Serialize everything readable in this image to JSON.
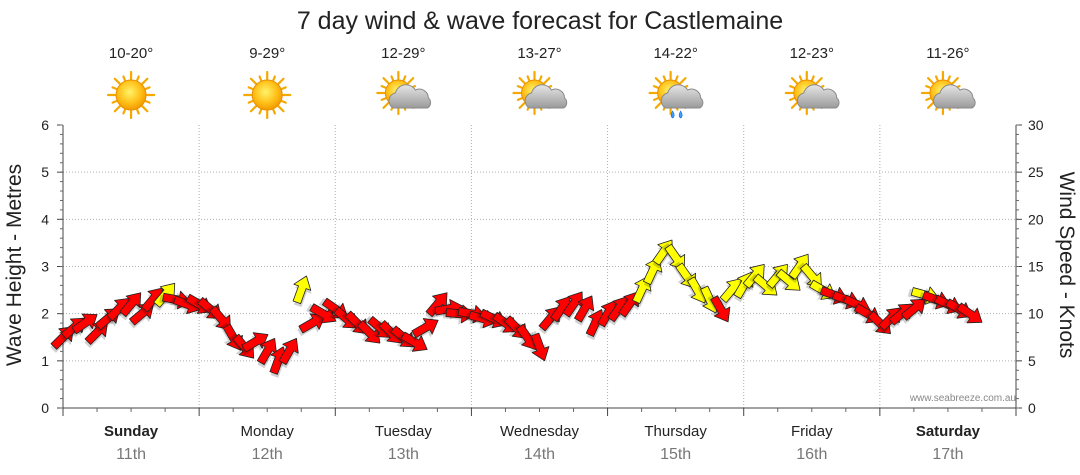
{
  "chart_data": {
    "type": "line",
    "title": "7 day wind & wave forecast for Castlemaine",
    "ylabel": "Wave Height - Metres",
    "y2label": "Wind Speed - Knots",
    "ylim": [
      0,
      6
    ],
    "y2lim": [
      0,
      30
    ],
    "yticks": [
      "0",
      "1",
      "2",
      "3",
      "4",
      "5",
      "6"
    ],
    "y2ticks": [
      "0",
      "5",
      "10",
      "15",
      "20",
      "25",
      "30"
    ],
    "credit": "www.seabreeze.com.au",
    "days": [
      {
        "name": "Sunday",
        "date": "11th",
        "bold": true,
        "temp": "10-20°",
        "icon": "sun-icon"
      },
      {
        "name": "Monday",
        "date": "12th",
        "bold": false,
        "temp": "9-29°",
        "icon": "sun-icon"
      },
      {
        "name": "Tuesday",
        "date": "13th",
        "bold": false,
        "temp": "12-29°",
        "icon": "sun-cloud-icon"
      },
      {
        "name": "Wednesday",
        "date": "14th",
        "bold": false,
        "temp": "13-27°",
        "icon": "sun-cloud-icon"
      },
      {
        "name": "Thursday",
        "date": "15th",
        "bold": false,
        "temp": "14-22°",
        "icon": "sun-cloud-rain-icon"
      },
      {
        "name": "Friday",
        "date": "16th",
        "bold": false,
        "temp": "12-23°",
        "icon": "sun-cloud-icon"
      },
      {
        "name": "Saturday",
        "date": "17th",
        "bold": true,
        "temp": "11-26°",
        "icon": "sun-cloud-icon"
      }
    ],
    "series": [
      {
        "name": "Wind Speed (knots) with direction",
        "colors": {
          "strong": "#ff0000",
          "moderate": "#ffff00",
          "outline": "#222222"
        },
        "points": [
          {
            "x": 0.0,
            "knots": 7.5,
            "dir": 45,
            "color": "strong"
          },
          {
            "x": 0.08,
            "knots": 8.5,
            "dir": 50,
            "color": "strong"
          },
          {
            "x": 0.16,
            "knots": 9.0,
            "dir": 55,
            "color": "strong"
          },
          {
            "x": 0.25,
            "knots": 8.0,
            "dir": 45,
            "color": "strong"
          },
          {
            "x": 0.33,
            "knots": 9.5,
            "dir": 50,
            "color": "strong"
          },
          {
            "x": 0.41,
            "knots": 10.5,
            "dir": 45,
            "color": "strong"
          },
          {
            "x": 0.5,
            "knots": 11.0,
            "dir": 40,
            "color": "strong"
          },
          {
            "x": 0.58,
            "knots": 10.0,
            "dir": 50,
            "color": "strong"
          },
          {
            "x": 0.66,
            "knots": 11.5,
            "dir": 40,
            "color": "strong"
          },
          {
            "x": 0.75,
            "knots": 12.0,
            "dir": 40,
            "color": "moderate"
          },
          {
            "x": 0.83,
            "knots": 11.5,
            "dir": 100,
            "color": "strong"
          },
          {
            "x": 0.91,
            "knots": 11.0,
            "dir": 110,
            "color": "strong"
          },
          {
            "x": 1.0,
            "knots": 11.0,
            "dir": 120,
            "color": "strong"
          },
          {
            "x": 1.08,
            "knots": 10.5,
            "dir": 130,
            "color": "strong"
          },
          {
            "x": 1.16,
            "knots": 9.5,
            "dir": 140,
            "color": "strong"
          },
          {
            "x": 1.25,
            "knots": 7.5,
            "dir": 150,
            "color": "strong"
          },
          {
            "x": 1.33,
            "knots": 6.5,
            "dir": 140,
            "color": "strong"
          },
          {
            "x": 1.41,
            "knots": 7.0,
            "dir": 60,
            "color": "strong"
          },
          {
            "x": 1.5,
            "knots": 6.0,
            "dir": 30,
            "color": "strong"
          },
          {
            "x": 1.58,
            "knots": 5.0,
            "dir": 20,
            "color": "strong"
          },
          {
            "x": 1.66,
            "knots": 6.0,
            "dir": 30,
            "color": "strong"
          },
          {
            "x": 1.75,
            "knots": 12.5,
            "dir": 20,
            "color": "moderate"
          },
          {
            "x": 1.83,
            "knots": 9.0,
            "dir": 60,
            "color": "strong"
          },
          {
            "x": 1.91,
            "knots": 10.0,
            "dir": 120,
            "color": "strong"
          },
          {
            "x": 2.0,
            "knots": 10.5,
            "dir": 125,
            "color": "strong"
          },
          {
            "x": 2.08,
            "knots": 9.5,
            "dir": 130,
            "color": "strong"
          },
          {
            "x": 2.16,
            "knots": 9.0,
            "dir": 135,
            "color": "strong"
          },
          {
            "x": 2.25,
            "knots": 8.0,
            "dir": 135,
            "color": "strong"
          },
          {
            "x": 2.33,
            "knots": 8.5,
            "dir": 130,
            "color": "strong"
          },
          {
            "x": 2.41,
            "knots": 8.0,
            "dir": 135,
            "color": "strong"
          },
          {
            "x": 2.5,
            "knots": 7.5,
            "dir": 130,
            "color": "strong"
          },
          {
            "x": 2.58,
            "knots": 7.0,
            "dir": 120,
            "color": "strong"
          },
          {
            "x": 2.66,
            "knots": 8.5,
            "dir": 60,
            "color": "strong"
          },
          {
            "x": 2.75,
            "knots": 11.0,
            "dir": 40,
            "color": "strong"
          },
          {
            "x": 2.83,
            "knots": 10.5,
            "dir": 80,
            "color": "strong"
          },
          {
            "x": 2.91,
            "knots": 10.0,
            "dir": 95,
            "color": "strong"
          },
          {
            "x": 3.0,
            "knots": 10.0,
            "dir": 100,
            "color": "strong"
          },
          {
            "x": 3.08,
            "knots": 9.5,
            "dir": 105,
            "color": "strong"
          },
          {
            "x": 3.16,
            "knots": 9.5,
            "dir": 115,
            "color": "strong"
          },
          {
            "x": 3.25,
            "knots": 9.0,
            "dir": 125,
            "color": "strong"
          },
          {
            "x": 3.33,
            "knots": 8.5,
            "dir": 135,
            "color": "strong"
          },
          {
            "x": 3.41,
            "knots": 7.5,
            "dir": 145,
            "color": "strong"
          },
          {
            "x": 3.5,
            "knots": 6.5,
            "dir": 160,
            "color": "strong"
          },
          {
            "x": 3.58,
            "knots": 9.5,
            "dir": 40,
            "color": "strong"
          },
          {
            "x": 3.66,
            "knots": 10.5,
            "dir": 35,
            "color": "strong"
          },
          {
            "x": 3.75,
            "knots": 11.0,
            "dir": 35,
            "color": "strong"
          },
          {
            "x": 3.83,
            "knots": 10.5,
            "dir": 30,
            "color": "strong"
          },
          {
            "x": 3.91,
            "knots": 9.0,
            "dir": 25,
            "color": "strong"
          },
          {
            "x": 4.0,
            "knots": 10.0,
            "dir": 30,
            "color": "strong"
          },
          {
            "x": 4.08,
            "knots": 10.5,
            "dir": 35,
            "color": "strong"
          },
          {
            "x": 4.16,
            "knots": 11.0,
            "dir": 35,
            "color": "strong"
          },
          {
            "x": 4.25,
            "knots": 12.5,
            "dir": 25,
            "color": "moderate"
          },
          {
            "x": 4.33,
            "knots": 14.5,
            "dir": 25,
            "color": "moderate"
          },
          {
            "x": 4.41,
            "knots": 16.5,
            "dir": 35,
            "color": "moderate"
          },
          {
            "x": 4.5,
            "knots": 16.0,
            "dir": 145,
            "color": "moderate"
          },
          {
            "x": 4.58,
            "knots": 14.0,
            "dir": 145,
            "color": "moderate"
          },
          {
            "x": 4.66,
            "knots": 12.5,
            "dir": 150,
            "color": "moderate"
          },
          {
            "x": 4.75,
            "knots": 11.5,
            "dir": 155,
            "color": "moderate"
          },
          {
            "x": 4.83,
            "knots": 10.5,
            "dir": 150,
            "color": "strong"
          },
          {
            "x": 4.91,
            "knots": 12.5,
            "dir": 40,
            "color": "moderate"
          },
          {
            "x": 5.0,
            "knots": 13.0,
            "dir": 30,
            "color": "moderate"
          },
          {
            "x": 5.08,
            "knots": 14.0,
            "dir": 40,
            "color": "moderate"
          },
          {
            "x": 5.16,
            "knots": 13.0,
            "dir": 130,
            "color": "moderate"
          },
          {
            "x": 5.25,
            "knots": 14.0,
            "dir": 40,
            "color": "moderate"
          },
          {
            "x": 5.33,
            "knots": 13.5,
            "dir": 130,
            "color": "moderate"
          },
          {
            "x": 5.41,
            "knots": 15.0,
            "dir": 35,
            "color": "moderate"
          },
          {
            "x": 5.5,
            "knots": 14.0,
            "dir": 140,
            "color": "moderate"
          },
          {
            "x": 5.58,
            "knots": 12.5,
            "dir": 120,
            "color": "moderate"
          },
          {
            "x": 5.66,
            "knots": 12.0,
            "dir": 110,
            "color": "strong"
          },
          {
            "x": 5.75,
            "knots": 11.5,
            "dir": 110,
            "color": "strong"
          },
          {
            "x": 5.83,
            "knots": 11.0,
            "dir": 115,
            "color": "strong"
          },
          {
            "x": 5.91,
            "knots": 10.0,
            "dir": 120,
            "color": "strong"
          },
          {
            "x": 6.0,
            "knots": 9.0,
            "dir": 135,
            "color": "strong"
          },
          {
            "x": 6.08,
            "knots": 9.5,
            "dir": 45,
            "color": "strong"
          },
          {
            "x": 6.16,
            "knots": 10.0,
            "dir": 50,
            "color": "strong"
          },
          {
            "x": 6.25,
            "knots": 10.5,
            "dir": 50,
            "color": "strong"
          },
          {
            "x": 6.33,
            "knots": 12.0,
            "dir": 105,
            "color": "moderate"
          },
          {
            "x": 6.41,
            "knots": 11.5,
            "dir": 110,
            "color": "strong"
          },
          {
            "x": 6.5,
            "knots": 11.0,
            "dir": 115,
            "color": "strong"
          },
          {
            "x": 6.58,
            "knots": 10.5,
            "dir": 120,
            "color": "strong"
          },
          {
            "x": 6.66,
            "knots": 10.0,
            "dir": 125,
            "color": "strong"
          }
        ]
      }
    ]
  }
}
